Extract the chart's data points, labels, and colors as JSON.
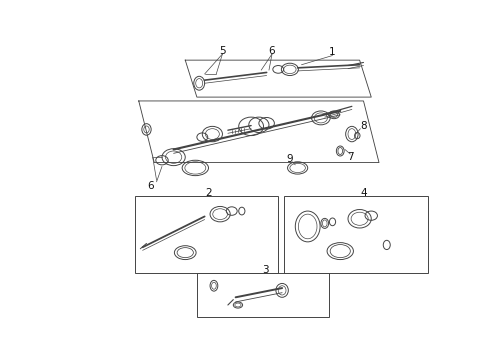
{
  "bg_color": "#ffffff",
  "line_color": "#444444",
  "label_color": "#111111",
  "lw": 0.7,
  "fig_w": 4.9,
  "fig_h": 3.6,
  "dpi": 100
}
